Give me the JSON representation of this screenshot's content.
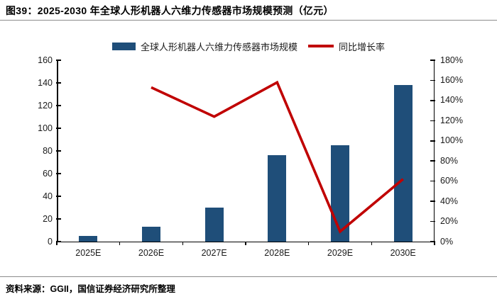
{
  "header": {
    "figure_title": "图39：2025-2030 年全球人形机器人六维力传感器市场规模预测（亿元）"
  },
  "footer": {
    "source": "资料来源：GGII，国信证券经济研究所整理"
  },
  "colors": {
    "bar": "#1F4E79",
    "line": "#C00000",
    "axis": "#000000",
    "divider": "#8C8C8C"
  },
  "chart_data": {
    "type": "bar",
    "subtype": "combo-bar-line",
    "title": "2025-2030 年全球人形机器人六维力传感器市场规模预测（亿元）",
    "categories": [
      "2025E",
      "2026E",
      "2027E",
      "2028E",
      "2029E",
      "2030E"
    ],
    "series": [
      {
        "name": "全球人形机器人六维力传感器市场规模",
        "type": "bar",
        "axis": "left",
        "unit": "亿元",
        "values": [
          5,
          13,
          30,
          76,
          85,
          138
        ]
      },
      {
        "name": "同比增长率",
        "type": "line",
        "axis": "right",
        "unit": "%",
        "values": [
          null,
          153,
          124,
          158,
          10,
          62
        ]
      }
    ],
    "left_axis": {
      "min": 0,
      "max": 160,
      "step": 20,
      "tick_labels": [
        "160",
        "140",
        "120",
        "100",
        "80",
        "60",
        "40",
        "20",
        "0"
      ]
    },
    "right_axis": {
      "min": 0,
      "max": 180,
      "step": 20,
      "tick_labels": [
        "180%",
        "160%",
        "140%",
        "120%",
        "100%",
        "80%",
        "60%",
        "40%",
        "20%",
        "0%"
      ]
    },
    "grid": "off",
    "legend_position": "top"
  }
}
